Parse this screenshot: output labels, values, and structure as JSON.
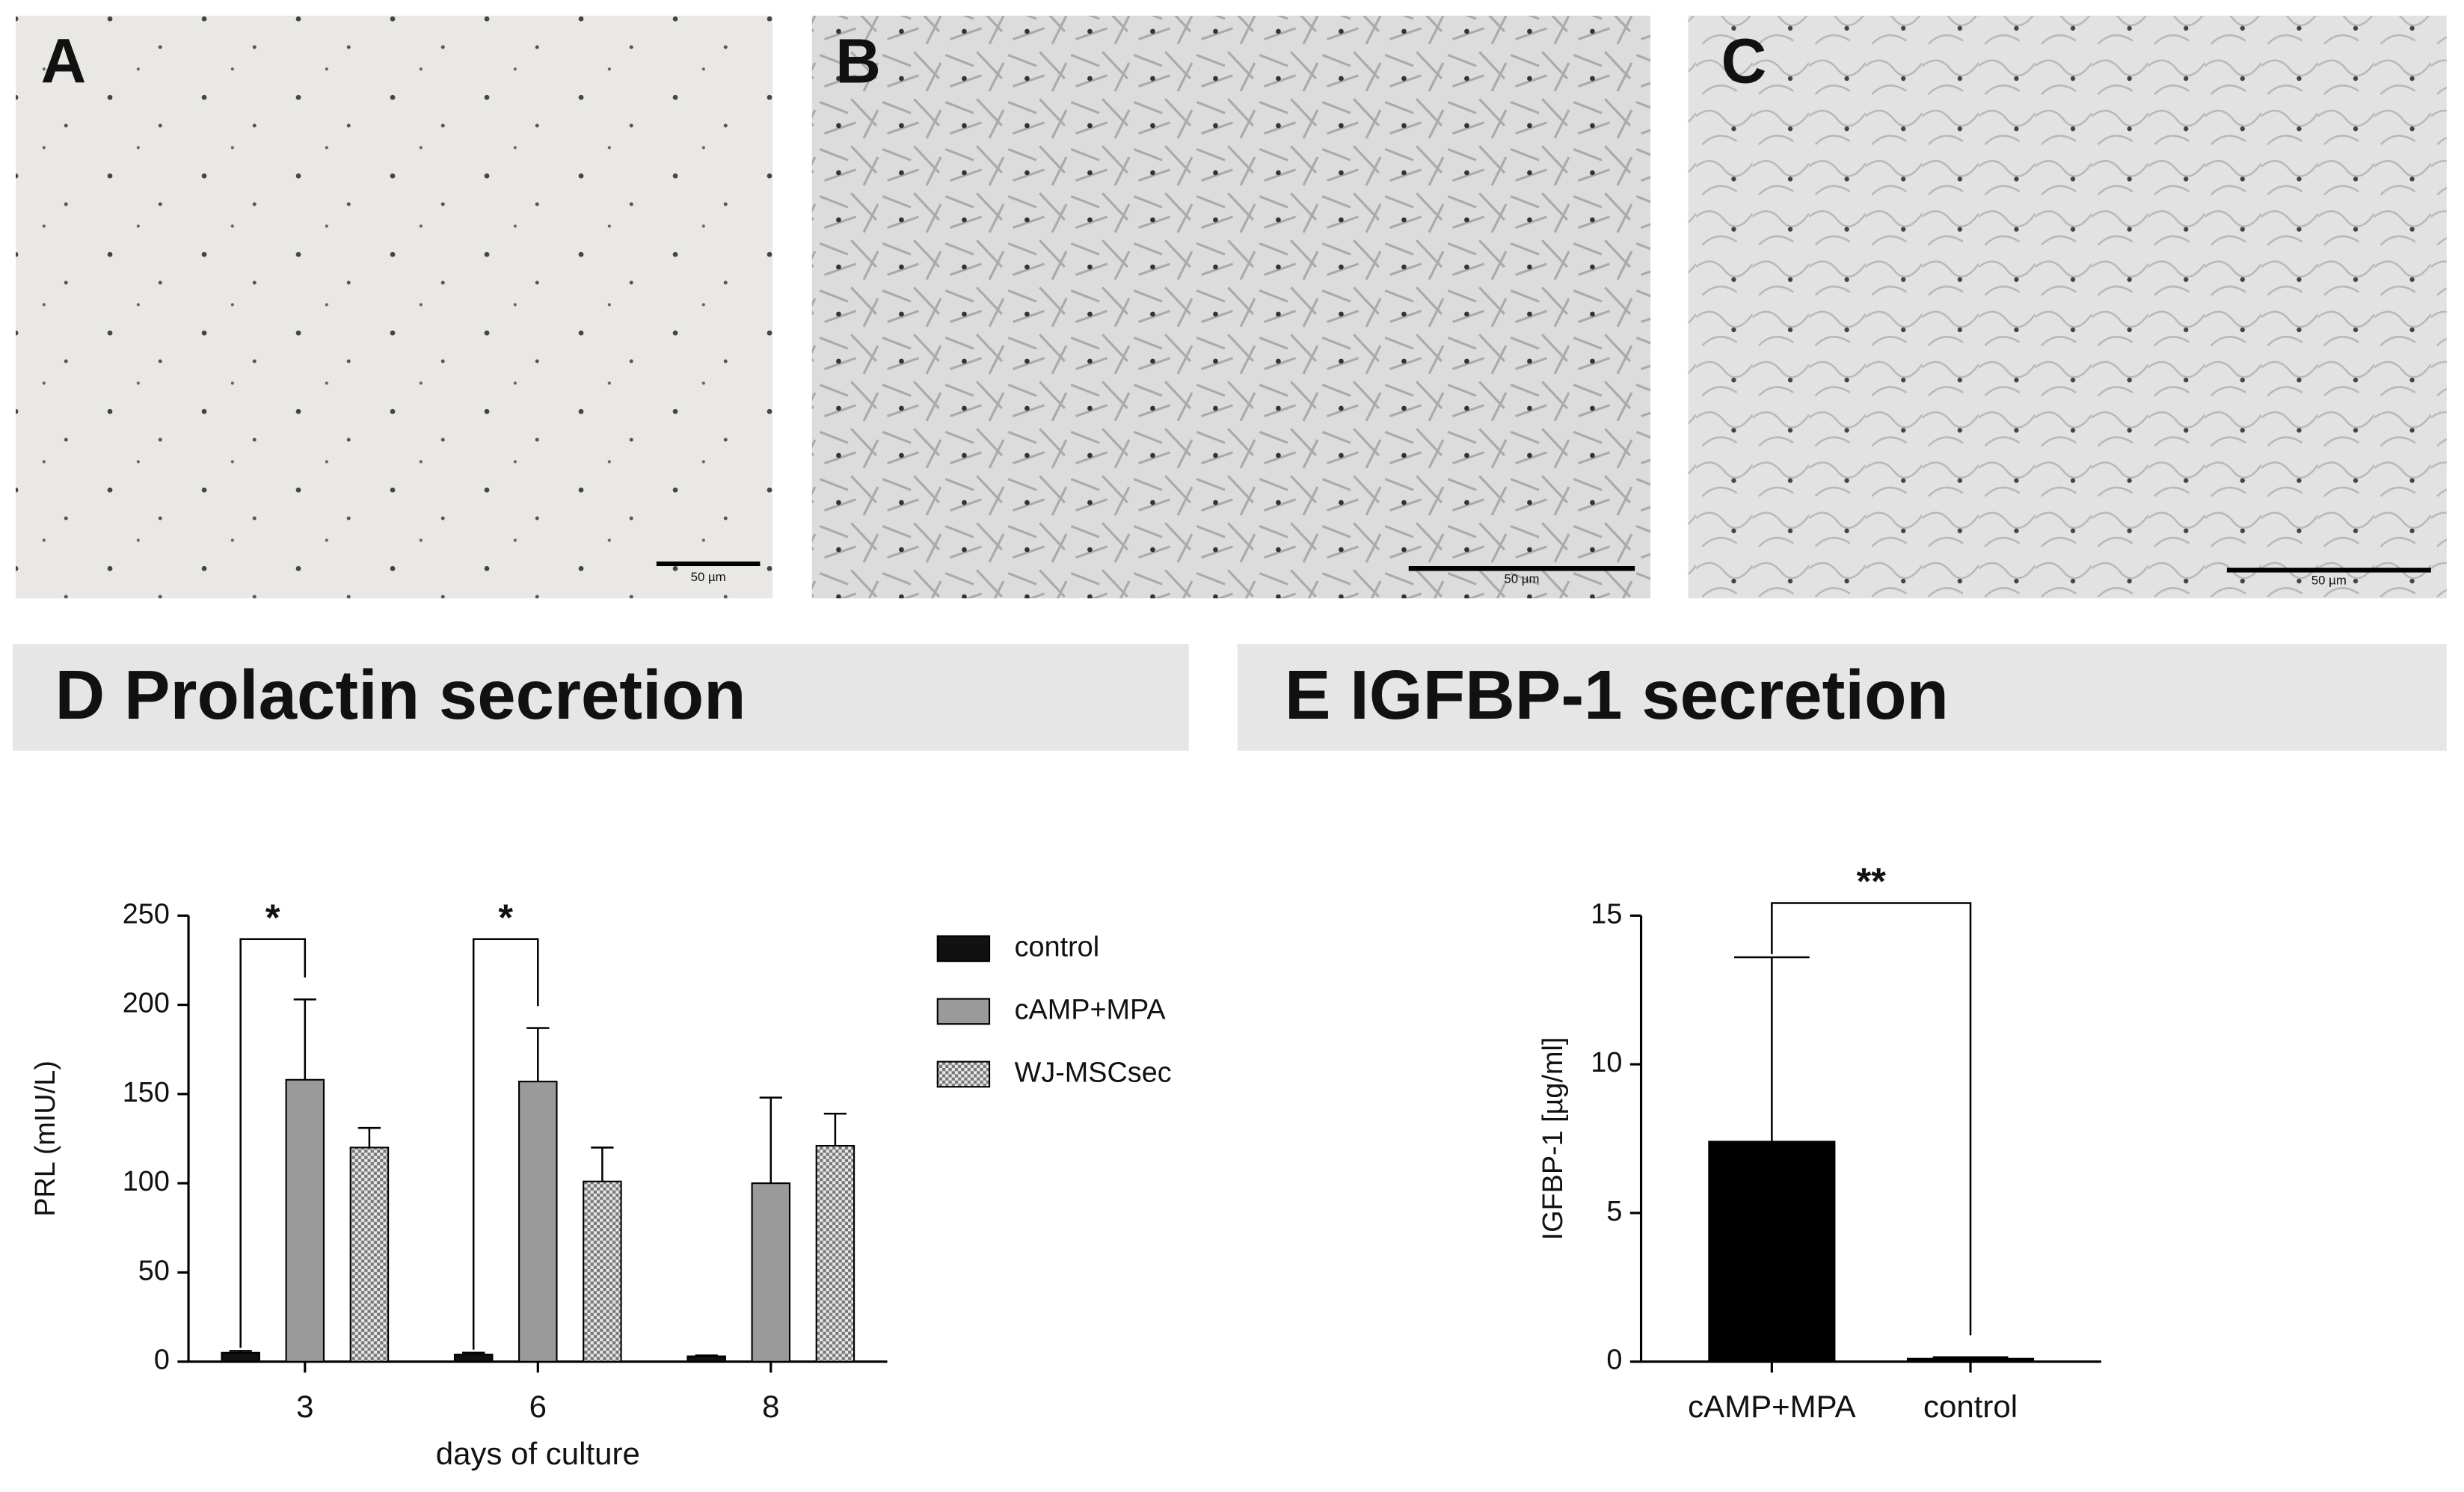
{
  "panels": [
    {
      "label": "A",
      "scale_bar": "50 µm"
    },
    {
      "label": "B",
      "scale_bar": "50 µm"
    },
    {
      "label": "C",
      "scale_bar": "50 µm"
    }
  ],
  "chart_data": [
    {
      "type": "bar",
      "title": "D Prolactin secretion",
      "x_label": "days of culture",
      "y_label": "PRL (mIU/L)",
      "categories": [
        "3",
        "6",
        "8"
      ],
      "series": [
        {
          "name": "control",
          "color": "#111111",
          "values": [
            5,
            4,
            3
          ],
          "errors": [
            1,
            1,
            0.5
          ]
        },
        {
          "name": "cAMP+MPA",
          "color": "#9a9a9a",
          "values": [
            158,
            157,
            100
          ],
          "errors": [
            45,
            30,
            48
          ]
        },
        {
          "name": "WJ-MSCsec",
          "color": "#cccccc",
          "pattern": "checker",
          "values": [
            120,
            101,
            121
          ],
          "errors": [
            11,
            19,
            18
          ]
        }
      ],
      "ylim": [
        0,
        250
      ],
      "yticks": [
        0,
        50,
        100,
        150,
        200,
        250
      ],
      "legend": "right",
      "annotations": [
        {
          "text": "*",
          "category": "3"
        },
        {
          "text": "*",
          "category": "6"
        }
      ]
    },
    {
      "type": "bar",
      "title": "E IGFBP-1 secretion",
      "y_label": "IGFBP-1 [µg/ml]",
      "categories": [
        "cAMP+MPA",
        "control"
      ],
      "series": [
        {
          "color": "#000000",
          "values": [
            7.4,
            0.1
          ],
          "errors": [
            6.2,
            0.05
          ]
        }
      ],
      "ylim": [
        0,
        15
      ],
      "yticks": [
        0,
        5,
        10,
        15
      ],
      "annotations": [
        {
          "text": "**",
          "category": "cAMP+MPA"
        }
      ]
    }
  ]
}
